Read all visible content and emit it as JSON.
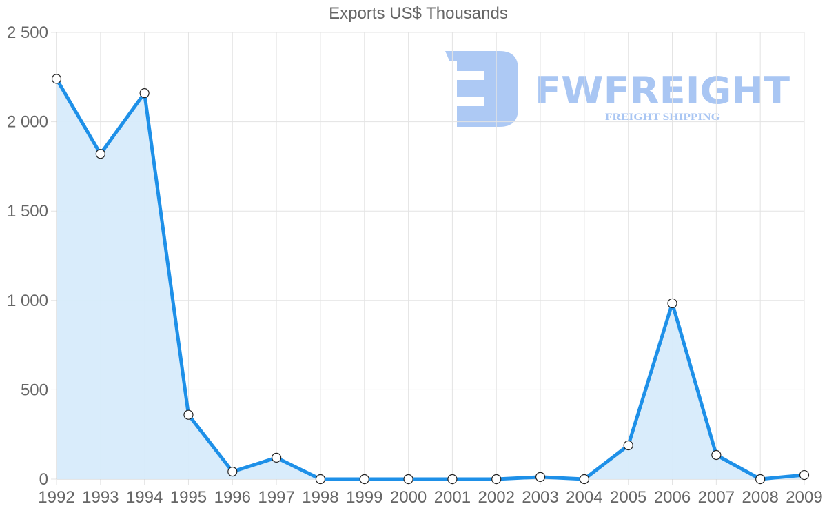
{
  "chart_data": {
    "type": "line",
    "title": "Exports US$ Thousands",
    "xlabel": "",
    "ylabel": "",
    "categories": [
      "1992",
      "1993",
      "1994",
      "1995",
      "1996",
      "1997",
      "1998",
      "1999",
      "2000",
      "2001",
      "2002",
      "2003",
      "2004",
      "2005",
      "2006",
      "2007",
      "2008",
      "2009"
    ],
    "series": [
      {
        "name": "Exports US$ Thousands",
        "values": [
          2240,
          1820,
          2160,
          360,
          42,
          120,
          0,
          0,
          0,
          0,
          0,
          12,
          0,
          189,
          984,
          135,
          0,
          23
        ],
        "color": "#1e90e8",
        "fill": "#d7ebfb",
        "area_fill": true
      }
    ],
    "ylim": [
      0,
      2500
    ],
    "yticks": [
      0,
      500,
      1000,
      1500,
      2000,
      2500
    ],
    "ytick_labels": [
      "0",
      "500",
      "1 000",
      "1 500",
      "2 000",
      "2 500"
    ],
    "grid": true,
    "legend": "none"
  },
  "watermark": {
    "brand": "FWFREIGHT",
    "tagline": "FREIGHT SHIPPING",
    "color": "#a9c6f3"
  },
  "colors": {
    "line": "#1e90e8",
    "area": "#d7ebfb",
    "grid": "#e3e3e3",
    "text": "#666666"
  }
}
